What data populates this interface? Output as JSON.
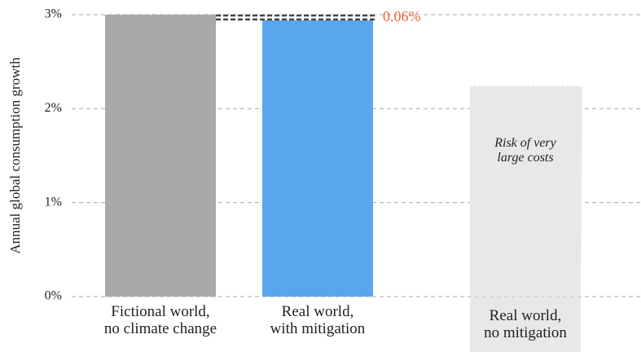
{
  "chart_data": {
    "type": "bar",
    "y_label": "Annual global consumption growth",
    "categories": [
      "Fictional world,\nno climate change",
      "Real world,\nwith mitigation",
      "Real world,\nno mitigation"
    ],
    "values": [
      3,
      2.94,
      2.25
    ],
    "colors": [
      "#a9a9a9",
      "#5aa6ec",
      "#e8e8e8"
    ],
    "ylim": [
      0,
      3
    ],
    "yticks": [
      {
        "value": 0,
        "label": "0%"
      },
      {
        "value": 1,
        "label": "1%"
      },
      {
        "value": 2,
        "label": "2%"
      },
      {
        "value": 3,
        "label": "3%"
      }
    ],
    "grid": true,
    "annotations": [
      {
        "value": 0.06,
        "label": "0.06%",
        "color": "#f0643c"
      }
    ],
    "bar_notes": [
      null,
      null,
      "Risk of very\nlarge costs"
    ]
  }
}
